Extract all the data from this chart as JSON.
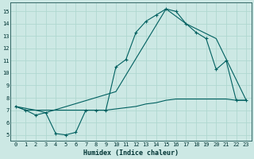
{
  "xlabel": "Humidex (Indice chaleur)",
  "bg_color": "#cce8e4",
  "grid_color": "#b0d8d0",
  "line_color": "#006060",
  "ylim": [
    4.5,
    15.7
  ],
  "xlim": [
    -0.5,
    23.5
  ],
  "yticks": [
    5,
    6,
    7,
    8,
    9,
    10,
    11,
    12,
    13,
    14,
    15
  ],
  "xticks": [
    0,
    1,
    2,
    3,
    4,
    5,
    6,
    7,
    8,
    9,
    10,
    11,
    12,
    13,
    14,
    15,
    16,
    17,
    18,
    19,
    20,
    21,
    22,
    23
  ],
  "curve_zigzag_x": [
    0,
    1,
    2,
    3,
    4,
    5,
    6,
    7,
    8,
    9,
    10,
    11,
    12,
    13,
    14,
    15,
    16,
    17,
    18,
    19,
    20,
    21,
    22,
    23
  ],
  "curve_zigzag_y": [
    7.3,
    7.0,
    6.6,
    6.8,
    5.1,
    5.0,
    5.2,
    7.0,
    7.0,
    7.0,
    10.5,
    11.1,
    13.3,
    14.2,
    14.7,
    15.2,
    15.0,
    14.0,
    13.3,
    12.8,
    10.3,
    11.0,
    7.8,
    7.8
  ],
  "curve_upper_x": [
    0,
    2,
    3,
    10,
    15,
    17,
    20,
    23
  ],
  "curve_upper_y": [
    7.3,
    7.0,
    6.8,
    8.5,
    15.2,
    14.0,
    12.8,
    7.8
  ],
  "curve_lower_x": [
    0,
    1,
    2,
    3,
    4,
    5,
    6,
    7,
    8,
    9,
    10,
    11,
    12,
    13,
    14,
    15,
    16,
    17,
    18,
    19,
    20,
    21,
    22,
    23
  ],
  "curve_lower_y": [
    7.3,
    7.0,
    7.0,
    7.0,
    7.0,
    7.0,
    7.0,
    7.0,
    7.0,
    7.0,
    7.1,
    7.2,
    7.3,
    7.5,
    7.6,
    7.8,
    7.9,
    7.9,
    7.9,
    7.9,
    7.9,
    7.9,
    7.8,
    7.8
  ]
}
